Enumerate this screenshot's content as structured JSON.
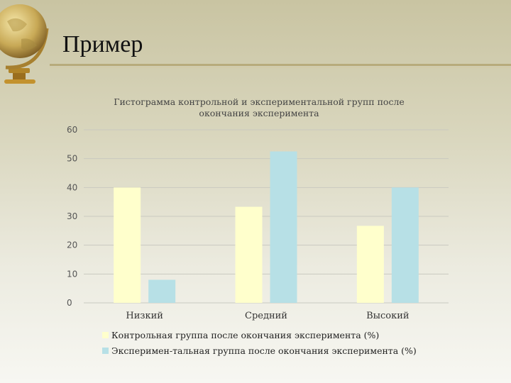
{
  "slide": {
    "title": "Пример"
  },
  "icons": {
    "decoration": "globe-icon"
  },
  "colors": {
    "control": "#ffffcc",
    "experimental": "#b7e0e6",
    "grid": "#c9c9c0"
  },
  "chart_data": {
    "type": "bar",
    "title": "Гистограмма контрольной и экспериментальной групп после окончания эксперимента",
    "categories": [
      "Низкий",
      "Средний",
      "Высокий"
    ],
    "series": [
      {
        "name": "Контрольная группа после окончания эксперимента (%)",
        "values": [
          40,
          33.3,
          26.7
        ]
      },
      {
        "name": "Эксперимен-тальная группа после окончания эксперимента (%)",
        "values": [
          8,
          52.5,
          40
        ]
      }
    ],
    "ylim": [
      0,
      60
    ],
    "yticks": [
      "0",
      "10",
      "20",
      "30",
      "40",
      "50",
      "60"
    ],
    "grid": true,
    "legend": "bottom"
  }
}
